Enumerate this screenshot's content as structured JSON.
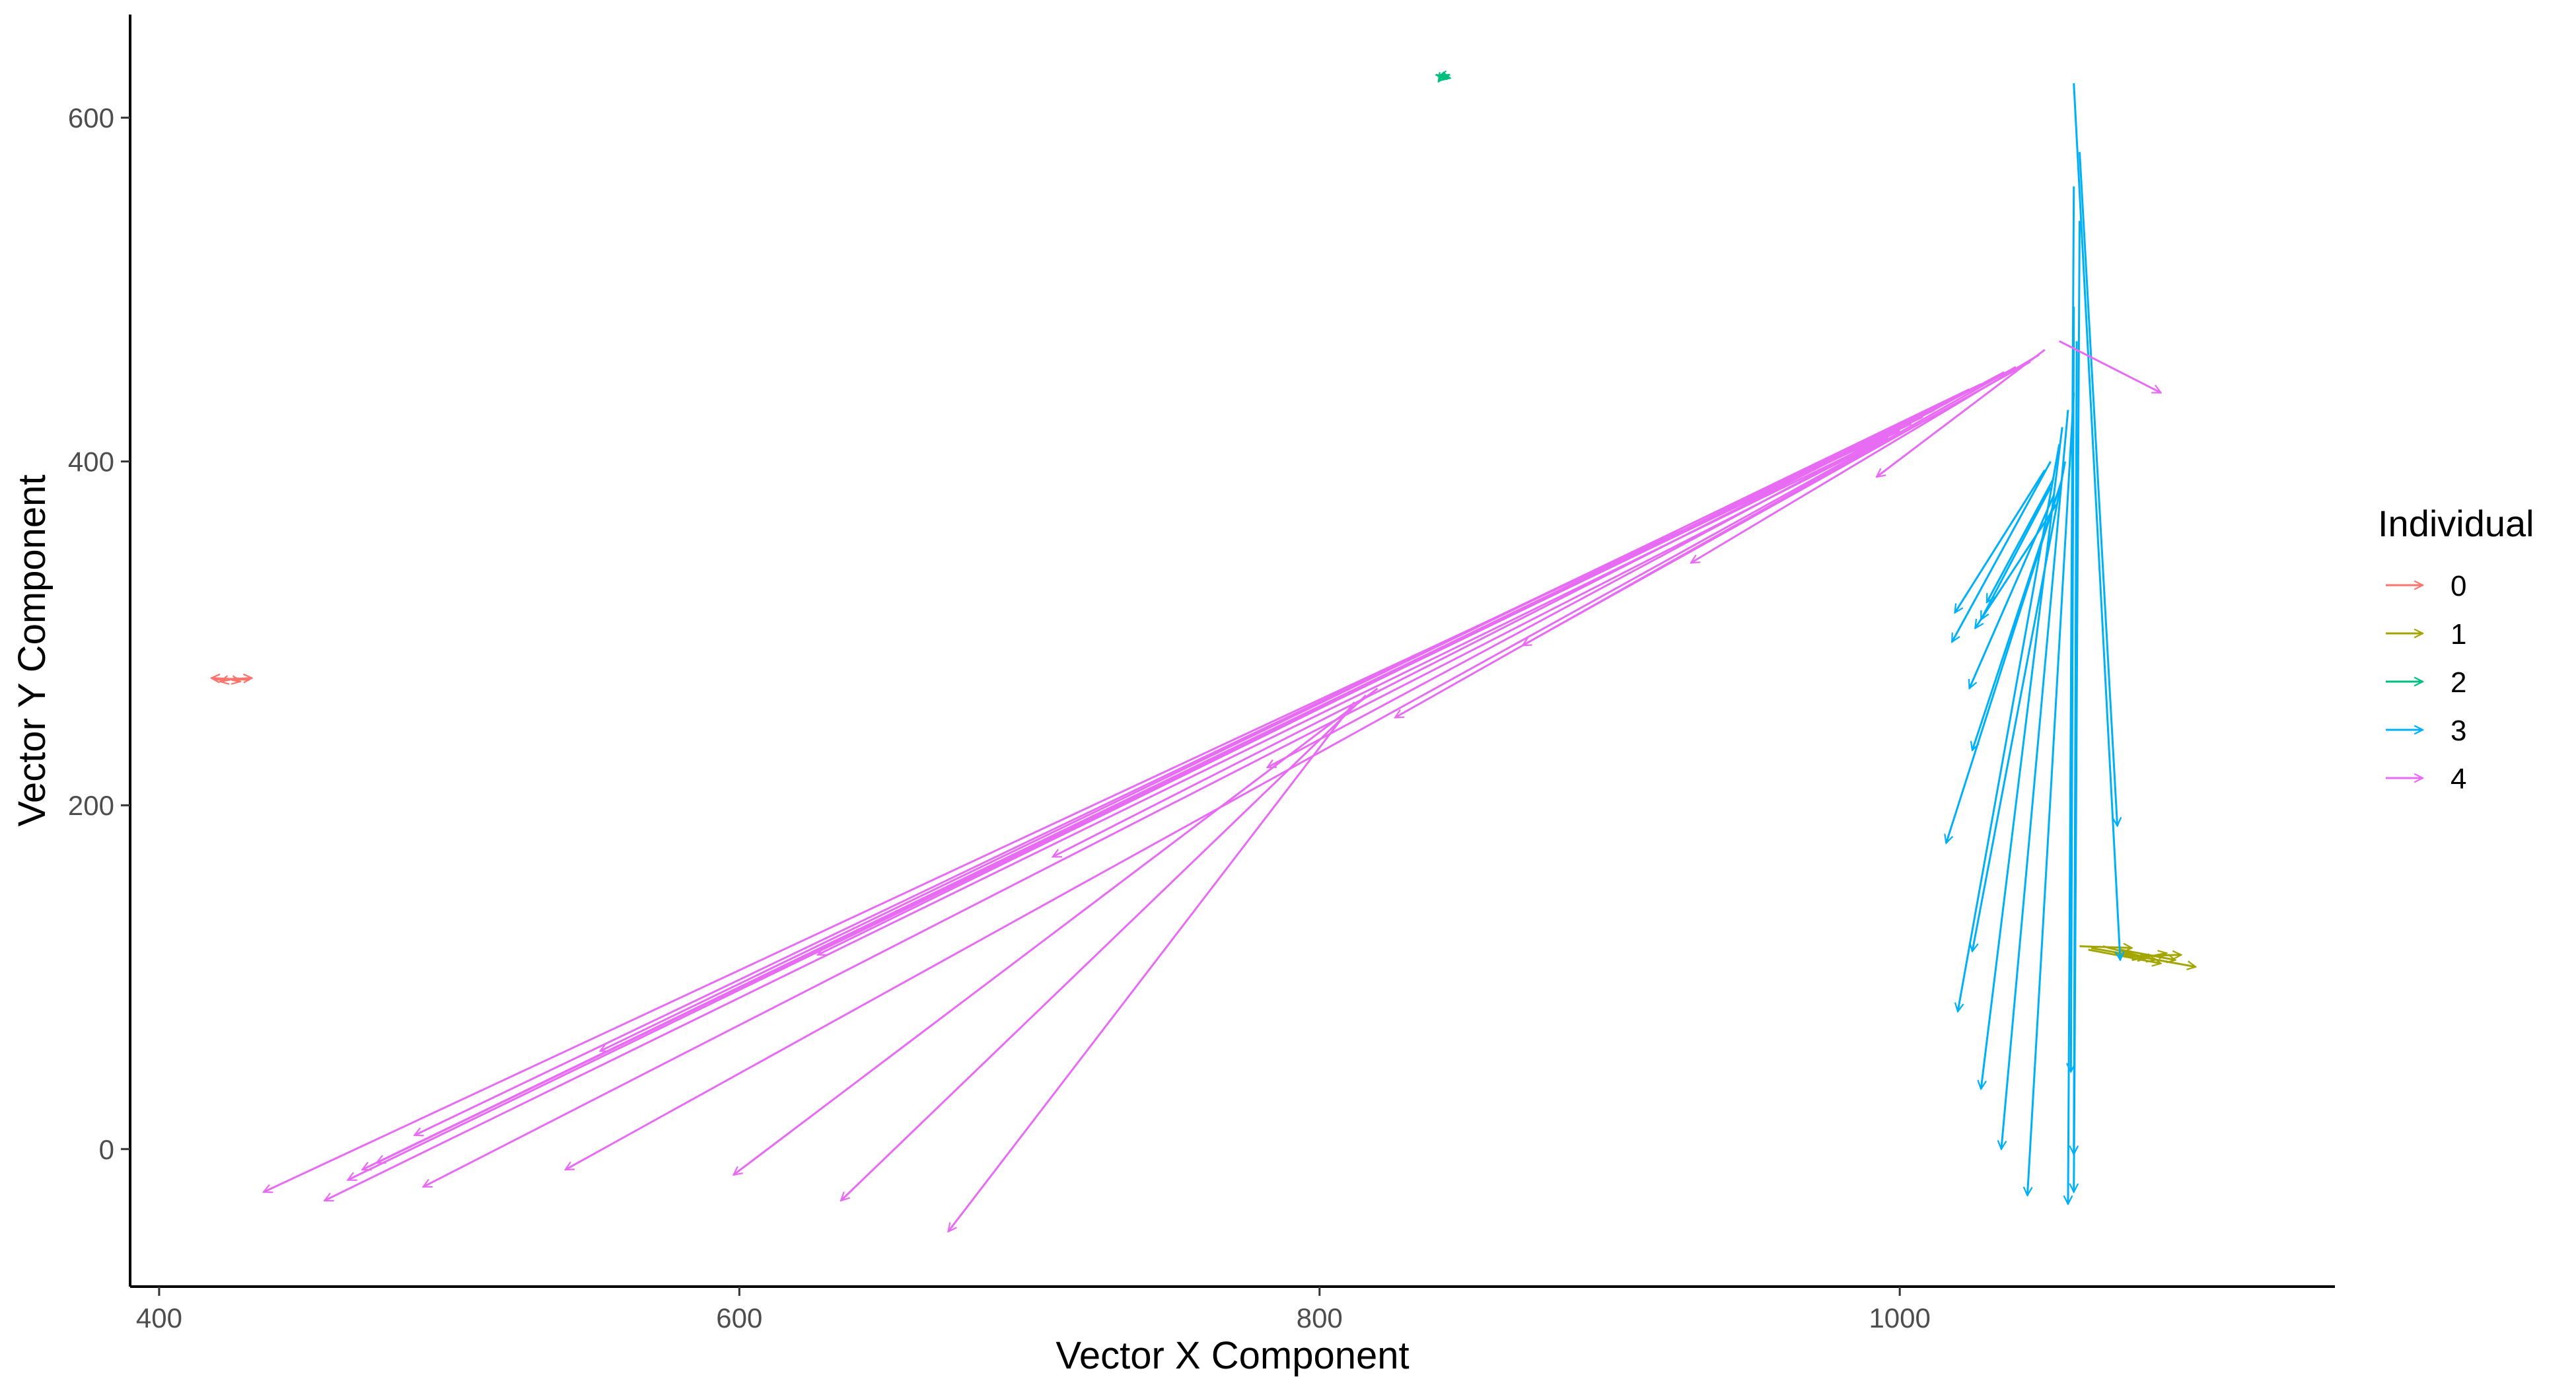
{
  "chart_data": {
    "type": "vector-field",
    "xlabel": "Vector X Component",
    "ylabel": "Vector Y Component",
    "xlim": [
      390,
      1150
    ],
    "ylim": [
      -80,
      660
    ],
    "x_ticks": [
      400,
      600,
      800,
      1000
    ],
    "y_ticks": [
      0,
      200,
      400,
      600
    ],
    "grid": false,
    "legend": {
      "title": "Individual",
      "position": "right"
    },
    "series": [
      {
        "name": "0",
        "color": "#F8766D",
        "segments": [
          [
            [
              419,
              273
            ],
            [
              432,
              274
            ]
          ],
          [
            [
              431,
              273
            ],
            [
              418,
              274
            ]
          ],
          [
            [
              425,
              273
            ],
            [
              428,
              272
            ]
          ],
          [
            [
              427,
              274
            ],
            [
              421,
              272
            ]
          ]
        ]
      },
      {
        "name": "1",
        "color": "#A3A500",
        "segments": [
          [
            [
              1066,
              117
            ],
            [
              1102,
              106
            ]
          ],
          [
            [
              1070,
              118
            ],
            [
              1088,
              110
            ]
          ],
          [
            [
              1076,
              116
            ],
            [
              1095,
              110
            ]
          ],
          [
            [
              1062,
              118
            ],
            [
              1080,
              117
            ]
          ],
          [
            [
              1078,
              112
            ],
            [
              1097,
              113
            ]
          ],
          [
            [
              1065,
              116
            ],
            [
              1090,
              108
            ]
          ],
          [
            [
              1074,
              114
            ],
            [
              1085,
              111
            ]
          ],
          [
            [
              1080,
              110
            ],
            [
              1092,
              114
            ]
          ]
        ]
      },
      {
        "name": "2",
        "color": "#00BF7D",
        "segments": [
          [
            [
              840,
              625
            ],
            [
              845,
              623
            ]
          ],
          [
            [
              843,
              626
            ],
            [
              841,
              621
            ]
          ],
          [
            [
              845,
              625
            ],
            [
              841,
              624
            ]
          ]
        ]
      },
      {
        "name": "3",
        "color": "#00B0F6",
        "segments": [
          [
            [
              1060,
              620
            ],
            [
              1076,
              110
            ]
          ],
          [
            [
              1062,
              580
            ],
            [
              1075,
              188
            ]
          ],
          [
            [
              1060,
              560
            ],
            [
              1058,
              -32
            ]
          ],
          [
            [
              1062,
              540
            ],
            [
              1060,
              -25
            ]
          ],
          [
            [
              1060,
              490
            ],
            [
              1059,
              45
            ]
          ],
          [
            [
              1061,
              470
            ],
            [
              1060,
              -3
            ]
          ],
          [
            [
              1060,
              440
            ],
            [
              1044,
              -27
            ]
          ],
          [
            [
              1058,
              430
            ],
            [
              1035,
              0
            ]
          ],
          [
            [
              1056,
              420
            ],
            [
              1028,
              35
            ]
          ],
          [
            [
              1055,
              410
            ],
            [
              1020,
              80
            ]
          ],
          [
            [
              1057,
              400
            ],
            [
              1025,
              115
            ]
          ],
          [
            [
              1056,
              390
            ],
            [
              1016,
              178
            ]
          ],
          [
            [
              1054,
              380
            ],
            [
              1025,
              232
            ]
          ],
          [
            [
              1053,
              380
            ],
            [
              1024,
              268
            ]
          ],
          [
            [
              1052,
              400
            ],
            [
              1018,
              295
            ]
          ],
          [
            [
              1050,
              395
            ],
            [
              1019,
              312
            ]
          ],
          [
            [
              1053,
              390
            ],
            [
              1030,
              318
            ]
          ],
          [
            [
              1052,
              385
            ],
            [
              1028,
              308
            ]
          ],
          [
            [
              1054,
              375
            ],
            [
              1026,
              303
            ]
          ]
        ]
      },
      {
        "name": "4",
        "color": "#E76BF3",
        "segments": [
          [
            [
              1055,
              470
            ],
            [
              1090,
              440
            ]
          ],
          [
            [
              1050,
              465
            ],
            [
              992,
              391
            ]
          ],
          [
            [
              1048,
              462
            ],
            [
              928,
              341
            ]
          ],
          [
            [
              1045,
              458
            ],
            [
              870,
              293
            ]
          ],
          [
            [
              1040,
              455
            ],
            [
              826,
              251
            ]
          ],
          [
            [
              1036,
              452
            ],
            [
              782,
              222
            ]
          ],
          [
            [
              1032,
              448
            ],
            [
              708,
              170
            ]
          ],
          [
            [
              1028,
              445
            ],
            [
              627,
              113
            ]
          ],
          [
            [
              1024,
              442
            ],
            [
              552,
              57
            ]
          ],
          [
            [
              1020,
              438
            ],
            [
              488,
              8
            ]
          ],
          [
            [
              1016,
              434
            ],
            [
              470,
              -12
            ]
          ],
          [
            [
              1012,
              430
            ],
            [
              465,
              -18
            ]
          ],
          [
            [
              1008,
              426
            ],
            [
              475,
              -8
            ]
          ],
          [
            [
              1004,
              422
            ],
            [
              436,
              -25
            ]
          ],
          [
            [
              1000,
              418
            ],
            [
              457,
              -30
            ]
          ],
          [
            [
              996,
              414
            ],
            [
              491,
              -22
            ]
          ],
          [
            [
              992,
              410
            ],
            [
              540,
              -12
            ]
          ],
          [
            [
              820,
              268
            ],
            [
              598,
              -15
            ]
          ],
          [
            [
              816,
              264
            ],
            [
              635,
              -30
            ]
          ],
          [
            [
              812,
              260
            ],
            [
              672,
              -48
            ]
          ]
        ]
      }
    ]
  }
}
